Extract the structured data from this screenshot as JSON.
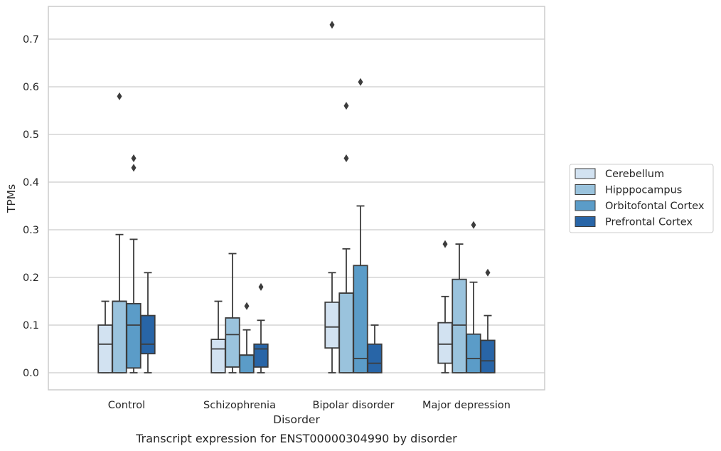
{
  "chart_data": {
    "type": "box",
    "caption": "Transcript expression for ENST00000304990 by disorder",
    "xlabel": "Disorder",
    "ylabel": "TPMs",
    "ylim": [
      -0.035,
      0.77
    ],
    "yticks": [
      0.0,
      0.1,
      0.2,
      0.3,
      0.4,
      0.5,
      0.6,
      0.7
    ],
    "ytick_labels": [
      "0.0",
      "0.1",
      "0.2",
      "0.3",
      "0.4",
      "0.5",
      "0.6",
      "0.7"
    ],
    "grid": "horizontal",
    "legend_position": "right",
    "categories": [
      "Control",
      "Schizophrenia",
      "Bipolar disorder",
      "Major depression"
    ],
    "series": [
      {
        "name": "Cerebellum",
        "color": "#d2e2f1",
        "boxes": [
          {
            "whisker_low": 0.0,
            "q1": 0.0,
            "median": 0.06,
            "q3": 0.1,
            "whisker_high": 0.15,
            "outliers": []
          },
          {
            "whisker_low": 0.0,
            "q1": 0.0,
            "median": 0.05,
            "q3": 0.07,
            "whisker_high": 0.15,
            "outliers": []
          },
          {
            "whisker_low": 0.0,
            "q1": 0.052,
            "median": 0.096,
            "q3": 0.148,
            "whisker_high": 0.21,
            "outliers": [
              0.73
            ]
          },
          {
            "whisker_low": 0.0,
            "q1": 0.02,
            "median": 0.06,
            "q3": 0.105,
            "whisker_high": 0.16,
            "outliers": [
              0.27
            ]
          }
        ]
      },
      {
        "name": "Hipppocampus",
        "color": "#9ac3dd",
        "boxes": [
          {
            "whisker_low": 0.0,
            "q1": 0.0,
            "median": 0.15,
            "q3": 0.15,
            "whisker_high": 0.29,
            "outliers": [
              0.58
            ]
          },
          {
            "whisker_low": 0.0,
            "q1": 0.012,
            "median": 0.08,
            "q3": 0.115,
            "whisker_high": 0.25,
            "outliers": []
          },
          {
            "whisker_low": 0.0,
            "q1": 0.0,
            "median": 0.167,
            "q3": 0.167,
            "whisker_high": 0.26,
            "outliers": [
              0.45,
              0.56
            ]
          },
          {
            "whisker_low": 0.0,
            "q1": 0.0,
            "median": 0.1,
            "q3": 0.196,
            "whisker_high": 0.27,
            "outliers": []
          }
        ]
      },
      {
        "name": "Orbitofontal Cortex",
        "color": "#5b9cc8",
        "boxes": [
          {
            "whisker_low": 0.0,
            "q1": 0.01,
            "median": 0.1,
            "q3": 0.145,
            "whisker_high": 0.28,
            "outliers": [
              0.43,
              0.45
            ]
          },
          {
            "whisker_low": 0.0,
            "q1": 0.0,
            "median": 0.037,
            "q3": 0.037,
            "whisker_high": 0.09,
            "outliers": [
              0.14
            ]
          },
          {
            "whisker_low": 0.0,
            "q1": 0.0,
            "median": 0.03,
            "q3": 0.225,
            "whisker_high": 0.35,
            "outliers": [
              0.61
            ]
          },
          {
            "whisker_low": 0.0,
            "q1": 0.0,
            "median": 0.03,
            "q3": 0.081,
            "whisker_high": 0.19,
            "outliers": [
              0.31
            ]
          }
        ]
      },
      {
        "name": "Prefrontal Cortex",
        "color": "#2865a7",
        "boxes": [
          {
            "whisker_low": 0.0,
            "q1": 0.04,
            "median": 0.06,
            "q3": 0.12,
            "whisker_high": 0.21,
            "outliers": []
          },
          {
            "whisker_low": 0.0,
            "q1": 0.012,
            "median": 0.05,
            "q3": 0.06,
            "whisker_high": 0.11,
            "outliers": [
              0.18
            ]
          },
          {
            "whisker_low": 0.0,
            "q1": 0.0,
            "median": 0.02,
            "q3": 0.06,
            "whisker_high": 0.1,
            "outliers": []
          },
          {
            "whisker_low": 0.0,
            "q1": 0.0,
            "median": 0.025,
            "q3": 0.068,
            "whisker_high": 0.12,
            "outliers": [
              0.21
            ]
          }
        ]
      }
    ]
  }
}
